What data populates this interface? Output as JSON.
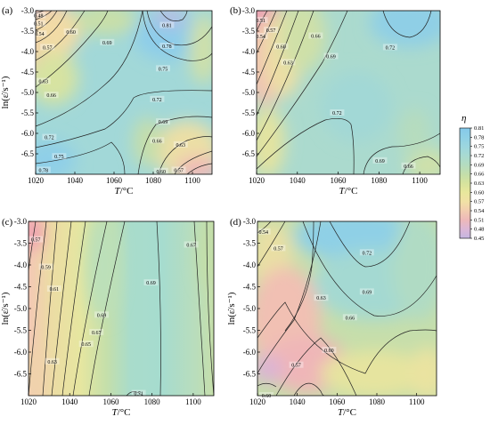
{
  "chart_data": [
    {
      "type": "contour",
      "panel_label": "(a)",
      "xlabel": "T/°C",
      "ylabel": "ln(ε̇/s⁻¹)",
      "xlim": [
        1020,
        1110
      ],
      "ylim": [
        -7.0,
        -3.0
      ],
      "x_ticks": [
        1020,
        1040,
        1060,
        1080,
        1100
      ],
      "y_ticks": [
        -3.0,
        -3.5,
        -4.0,
        -4.5,
        -5.0,
        -5.5,
        -6.0,
        -6.5
      ],
      "contour_labels": [
        {
          "value": "0.48",
          "x": 1021.5,
          "y": -3.12
        },
        {
          "value": "0.51",
          "x": 1021.5,
          "y": -3.32
        },
        {
          "value": "0.54",
          "x": 1022.0,
          "y": -3.57
        },
        {
          "value": "0.57",
          "x": 1026.0,
          "y": -3.9
        },
        {
          "value": "0.60",
          "x": 1038.0,
          "y": -3.52
        },
        {
          "value": "0.69",
          "x": 1056.5,
          "y": -3.78
        },
        {
          "value": "0.81",
          "x": 1087.0,
          "y": -3.36
        },
        {
          "value": "0.78",
          "x": 1087.0,
          "y": -3.87
        },
        {
          "value": "0.75",
          "x": 1085.0,
          "y": -4.42
        },
        {
          "value": "0.63",
          "x": 1024.0,
          "y": -4.73
        },
        {
          "value": "0.66",
          "x": 1028.0,
          "y": -5.07
        },
        {
          "value": "0.72",
          "x": 1082.0,
          "y": -5.17
        },
        {
          "value": "0.69",
          "x": 1085.0,
          "y": -5.72
        },
        {
          "value": "0.66",
          "x": 1082.0,
          "y": -6.18
        },
        {
          "value": "0.63",
          "x": 1094.0,
          "y": -6.28
        },
        {
          "value": "0.72",
          "x": 1027.0,
          "y": -6.1
        },
        {
          "value": "0.75",
          "x": 1032.0,
          "y": -6.57
        },
        {
          "value": "0.78",
          "x": 1024.0,
          "y": -6.9
        },
        {
          "value": "0.60",
          "x": 1084.0,
          "y": -6.93
        },
        {
          "value": "0.57",
          "x": 1093.0,
          "y": -6.9
        }
      ]
    },
    {
      "type": "contour",
      "panel_label": "(b)",
      "xlabel": "T/°C",
      "ylabel": "",
      "xlim": [
        1020,
        1110
      ],
      "ylim": [
        -7.0,
        -3.0
      ],
      "x_ticks": [
        1020,
        1040,
        1060,
        1080,
        1100
      ],
      "y_ticks": [
        -3.0,
        -3.5,
        -4.0,
        -4.5,
        -5.0,
        -5.5,
        -6.0,
        -6.5
      ],
      "contour_labels": [
        {
          "value": "0.51",
          "x": 1022.0,
          "y": -3.24
        },
        {
          "value": "0.54",
          "x": 1022.0,
          "y": -3.63
        },
        {
          "value": "0.57",
          "x": 1027.0,
          "y": -3.48
        },
        {
          "value": "0.60",
          "x": 1032.0,
          "y": -3.88
        },
        {
          "value": "0.63",
          "x": 1035.5,
          "y": -4.27
        },
        {
          "value": "0.66",
          "x": 1049.0,
          "y": -3.62
        },
        {
          "value": "0.69",
          "x": 1056.5,
          "y": -4.12
        },
        {
          "value": "0.72",
          "x": 1085.5,
          "y": -3.9
        },
        {
          "value": "0.72",
          "x": 1059.5,
          "y": -5.5
        },
        {
          "value": "0.69",
          "x": 1080.5,
          "y": -6.67
        },
        {
          "value": "0.66",
          "x": 1094.5,
          "y": -6.8
        }
      ]
    },
    {
      "type": "contour",
      "panel_label": "(c)",
      "xlabel": "T/°C",
      "ylabel": "ln(ε̇/s⁻¹)",
      "xlim": [
        1020,
        1110
      ],
      "ylim": [
        -7.0,
        -3.0
      ],
      "x_ticks": [
        1020,
        1040,
        1060,
        1080,
        1100
      ],
      "y_ticks": [
        -3.0,
        -3.5,
        -4.0,
        -4.5,
        -5.0,
        -5.5,
        -6.0,
        -6.5
      ],
      "contour_labels": [
        {
          "value": "0.57",
          "x": 1023.5,
          "y": -3.42
        },
        {
          "value": "0.59",
          "x": 1028.5,
          "y": -4.05
        },
        {
          "value": "0.61",
          "x": 1032.5,
          "y": -4.55
        },
        {
          "value": "0.63",
          "x": 1031.5,
          "y": -6.22
        },
        {
          "value": "0.65",
          "x": 1048.0,
          "y": -5.82
        },
        {
          "value": "0.67",
          "x": 1053.0,
          "y": -5.55
        },
        {
          "value": "0.69",
          "x": 1055.5,
          "y": -5.15
        },
        {
          "value": "0.69",
          "x": 1079.5,
          "y": -4.41
        },
        {
          "value": "0.67",
          "x": 1099.0,
          "y": -3.54
        },
        {
          "value": "0.71",
          "x": 1073.5,
          "y": -6.95
        }
      ]
    },
    {
      "type": "contour",
      "panel_label": "(d)",
      "xlabel": "T/°C",
      "ylabel": "ln(ε̇/s⁻¹)",
      "xlim": [
        1020,
        1110
      ],
      "ylim": [
        -7.0,
        -3.0
      ],
      "x_ticks": [
        1020,
        1040,
        1060,
        1080,
        1100
      ],
      "y_ticks": [
        -3.0,
        -3.5,
        -4.0,
        -4.5,
        -5.0,
        -5.5,
        -6.0,
        -6.5
      ],
      "contour_labels": [
        {
          "value": "0.54",
          "x": 1023.0,
          "y": -3.24
        },
        {
          "value": "0.57",
          "x": 1030.5,
          "y": -3.62
        },
        {
          "value": "0.72",
          "x": 1075.0,
          "y": -3.72
        },
        {
          "value": "0.69",
          "x": 1075.0,
          "y": -4.62
        },
        {
          "value": "0.63",
          "x": 1052.0,
          "y": -4.76
        },
        {
          "value": "0.66",
          "x": 1066.5,
          "y": -5.21
        },
        {
          "value": "0.60",
          "x": 1056.0,
          "y": -5.96
        },
        {
          "value": "0.57",
          "x": 1039.5,
          "y": -6.3
        },
        {
          "value": "0.60",
          "x": 1024.5,
          "y": -7.0
        }
      ]
    }
  ],
  "colorbar": {
    "title": "η",
    "ticks": [
      "0.81",
      "0.78",
      "0.75",
      "0.72",
      "0.69",
      "0.66",
      "0.63",
      "0.60",
      "0.57",
      "0.54",
      "0.51",
      "0.48",
      "0.45"
    ],
    "colors": [
      "#85c9ea",
      "#8fd0e6",
      "#9cd6df",
      "#a8dad2",
      "#b4dcc0",
      "#c3deab",
      "#d6e39d",
      "#e8e79c",
      "#f1e1a5",
      "#f2cdb0",
      "#eeb8b9",
      "#dcb7d6",
      "#c4b6e1"
    ],
    "range": [
      0.45,
      0.81
    ]
  }
}
